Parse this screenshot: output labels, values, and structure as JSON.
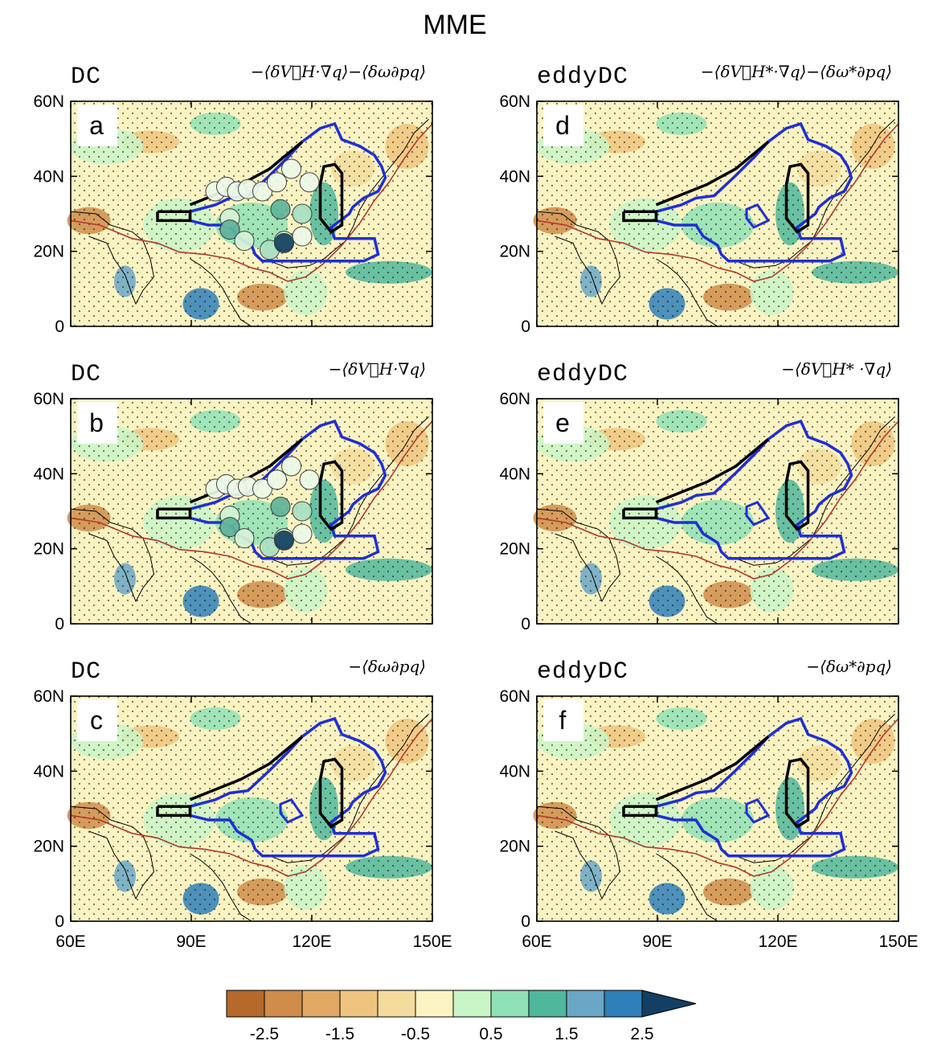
{
  "figure": {
    "title": "MME",
    "x_ticks": [
      "60E",
      "90E",
      "120E",
      "150E"
    ],
    "y_ticks": [
      "60N",
      "40N",
      "20N",
      "0"
    ],
    "panels": [
      {
        "id": "a",
        "dataset": "DC",
        "formula": "−⟨δV⃗H·∇q⟩−⟨δω∂pq⟩",
        "has_circles": true,
        "has_inner_blue": false
      },
      {
        "id": "b",
        "dataset": "DC",
        "formula": "−⟨δV⃗H·∇q⟩",
        "has_circles": true,
        "has_inner_blue": false
      },
      {
        "id": "c",
        "dataset": "DC",
        "formula": "−⟨δω∂pq⟩",
        "has_circles": false,
        "has_inner_blue": true
      },
      {
        "id": "d",
        "dataset": "eddyDC",
        "formula": "−⟨δV⃗H*·∇q⟩−⟨δω*∂pq⟩",
        "has_circles": false,
        "has_inner_blue": true
      },
      {
        "id": "e",
        "dataset": "eddyDC",
        "formula": "−⟨δV⃗H* ·∇q⟩",
        "has_circles": false,
        "has_inner_blue": true
      },
      {
        "id": "f",
        "dataset": "eddyDC",
        "formula": "−⟨δω*∂pq⟩",
        "has_circles": false,
        "has_inner_blue": true
      }
    ]
  },
  "colorbar": {
    "labels": [
      "-2.5",
      "-1.5",
      "-0.5",
      "0.5",
      "1.5",
      "2.5"
    ],
    "colors": [
      "#b5692a",
      "#cf8c4a",
      "#e0a865",
      "#efc47e",
      "#f3dc9d",
      "#fbf3c2",
      "#c9f5c7",
      "#8fe0b5",
      "#4fb79c",
      "#6aa6c6",
      "#2f7fb8",
      "#123f63"
    ]
  },
  "map_colors": {
    "land_outline": "#000000",
    "border_red": "#b03a2e",
    "region_blue": "#1f2fd6",
    "region_black": "#000000"
  }
}
